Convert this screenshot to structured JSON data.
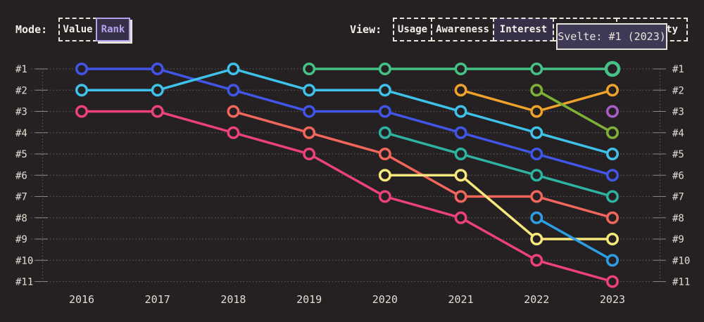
{
  "header": {
    "mode_label": "Mode:",
    "mode_buttons": [
      {
        "label": "Value",
        "selected": false
      },
      {
        "label": "Rank",
        "selected": true
      }
    ],
    "view_label": "View:",
    "view_buttons": [
      {
        "label": "Usage",
        "selected": false
      },
      {
        "label": "Awareness",
        "selected": false
      },
      {
        "label": "Interest",
        "selected": true
      },
      {
        "label": "",
        "selected": false
      },
      {
        "label": "ty",
        "selected": false
      }
    ],
    "tooltip_text": "Svelte: #1 (2023)"
  },
  "colors": {
    "background": "#252122",
    "axis_text": "#e2dcd2",
    "gridline": "#5a5555",
    "tick": "#8a8580",
    "accent_lavender": "#b4a3ee",
    "tooltip_bg": "#3e3954",
    "cream": "#e9e4da"
  },
  "chart_data": {
    "type": "line",
    "subtype": "bump-rank-chart",
    "x": [
      2016,
      2017,
      2018,
      2019,
      2020,
      2021,
      2022,
      2023
    ],
    "rank_labels": [
      "#1",
      "#2",
      "#3",
      "#4",
      "#5",
      "#6",
      "#7",
      "#8",
      "#9",
      "#10",
      "#11"
    ],
    "ylim": [
      1,
      11
    ],
    "grid": "dotted-horizontal",
    "legend": "none",
    "highlight_tooltip": {
      "series": "Svelte",
      "rank": 1,
      "year": 2023
    },
    "series": [
      {
        "name": "blue",
        "color": "#4156e8",
        "points": [
          [
            2016,
            1
          ],
          [
            2017,
            1
          ],
          [
            2018,
            2
          ],
          [
            2019,
            3
          ],
          [
            2020,
            3
          ],
          [
            2021,
            4
          ],
          [
            2022,
            5
          ],
          [
            2023,
            6
          ]
        ]
      },
      {
        "name": "cyan",
        "color": "#3fc2ea",
        "points": [
          [
            2016,
            2
          ],
          [
            2017,
            2
          ],
          [
            2018,
            1
          ],
          [
            2019,
            2
          ],
          [
            2020,
            2
          ],
          [
            2021,
            3
          ],
          [
            2022,
            4
          ],
          [
            2023,
            5
          ]
        ]
      },
      {
        "name": "pink",
        "color": "#ed4179",
        "points": [
          [
            2016,
            3
          ],
          [
            2017,
            3
          ],
          [
            2018,
            4
          ],
          [
            2019,
            5
          ],
          [
            2020,
            7
          ],
          [
            2021,
            8
          ],
          [
            2022,
            10
          ],
          [
            2023,
            11
          ]
        ]
      },
      {
        "name": "salmon",
        "color": "#f2665c",
        "points": [
          [
            2018,
            3
          ],
          [
            2019,
            4
          ],
          [
            2020,
            5
          ],
          [
            2021,
            7
          ],
          [
            2022,
            7
          ],
          [
            2023,
            8
          ]
        ]
      },
      {
        "name": "teal",
        "color": "#2eb3a2",
        "points": [
          [
            2020,
            4
          ],
          [
            2021,
            5
          ],
          [
            2022,
            6
          ],
          [
            2023,
            7
          ]
        ]
      },
      {
        "name": "yellow",
        "color": "#f6e87d",
        "points": [
          [
            2020,
            6
          ],
          [
            2021,
            6
          ],
          [
            2022,
            9
          ],
          [
            2023,
            9
          ]
        ]
      },
      {
        "name": "orange",
        "color": "#efa32b",
        "points": [
          [
            2021,
            2
          ],
          [
            2022,
            3
          ],
          [
            2023,
            2
          ]
        ]
      },
      {
        "name": "olive",
        "color": "#7eb237",
        "points": [
          [
            2022,
            2
          ],
          [
            2023,
            4
          ]
        ]
      },
      {
        "name": "sky-blue",
        "color": "#2d9de4",
        "points": [
          [
            2022,
            8
          ],
          [
            2023,
            10
          ]
        ]
      },
      {
        "name": "purple",
        "color": "#a75ec8",
        "points": [
          [
            2023,
            3
          ]
        ]
      },
      {
        "name": "Svelte",
        "color": "#45c285",
        "big_marker_year": 2023,
        "points": [
          [
            2019,
            1
          ],
          [
            2020,
            1
          ],
          [
            2021,
            1
          ],
          [
            2022,
            1
          ],
          [
            2023,
            1
          ]
        ]
      }
    ]
  }
}
